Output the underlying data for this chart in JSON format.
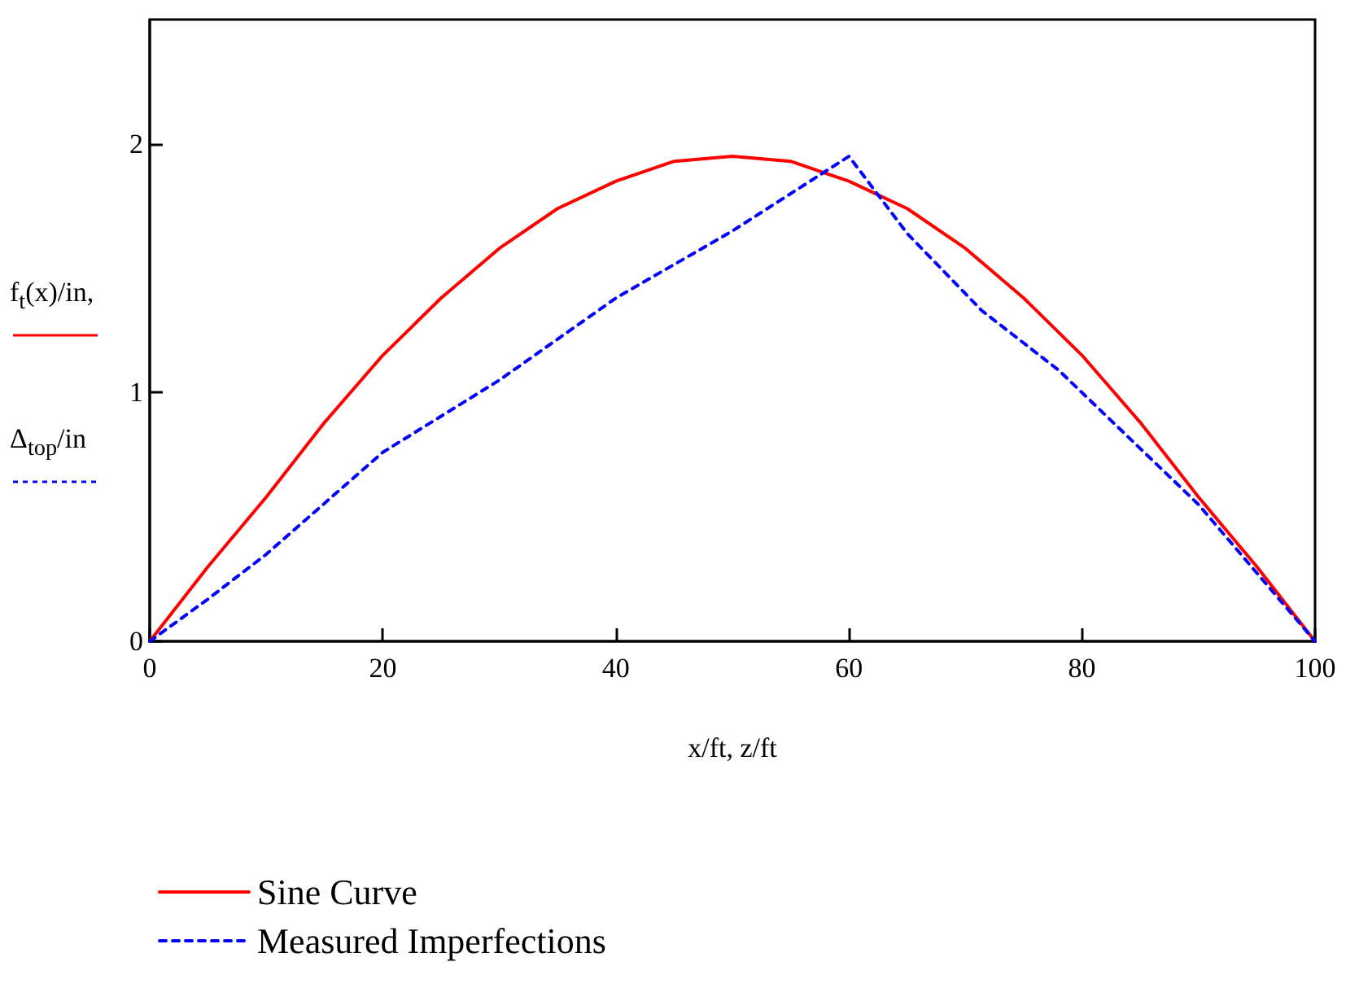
{
  "chart_data": {
    "type": "line",
    "xlabel": "x/ft, z/ft",
    "ylabel": "f$_{t}$(x)/in, Δ$_{top}$/in",
    "xlim": [
      0,
      100
    ],
    "xticks": [
      0,
      20,
      40,
      60,
      80,
      100
    ],
    "ylim": [
      0,
      2.5
    ],
    "yticks": [
      0,
      1,
      2
    ],
    "grid": false,
    "legend": "bottom",
    "marker": "none",
    "series": [
      {
        "name": "Sine Curve",
        "color": "#ff0000",
        "line_style": "solid",
        "x": [
          0,
          5,
          10,
          15,
          20,
          25,
          30,
          35,
          40,
          45,
          50,
          55,
          60,
          65,
          70,
          75,
          80,
          85,
          90,
          95,
          100
        ],
        "values": [
          0,
          0.3,
          0.58,
          0.88,
          1.15,
          1.38,
          1.58,
          1.74,
          1.85,
          1.93,
          1.95,
          1.93,
          1.85,
          1.74,
          1.58,
          1.38,
          1.15,
          0.88,
          0.58,
          0.3,
          0
        ]
      },
      {
        "name": "Measured Imperfections",
        "color": "#0000ff",
        "line_style": "dashed",
        "x": [
          0,
          5,
          10,
          20,
          30,
          40,
          50,
          60,
          65,
          71.4,
          78,
          90,
          100
        ],
        "values": [
          0,
          0.17,
          0.35,
          0.76,
          1.05,
          1.38,
          1.65,
          1.95,
          1.64,
          1.33,
          1.09,
          0.55,
          0
        ]
      }
    ]
  }
}
